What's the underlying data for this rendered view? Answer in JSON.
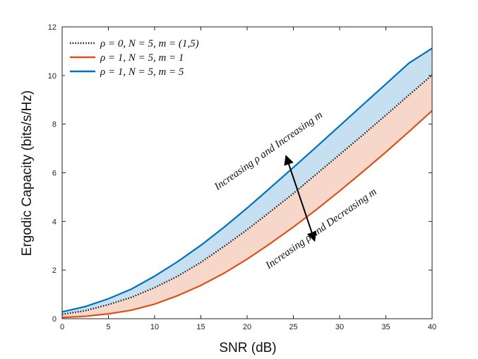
{
  "chart_data": {
    "type": "line",
    "xlabel": "SNR (dB)",
    "ylabel": "Ergodic Capacity (bits/s/Hz)",
    "xlim": [
      0,
      40
    ],
    "ylim": [
      0,
      12
    ],
    "xticks": [
      0,
      5,
      10,
      15,
      20,
      25,
      30,
      35,
      40
    ],
    "yticks": [
      0,
      2,
      4,
      6,
      8,
      10,
      12
    ],
    "grid": false,
    "legend_position": "top-left",
    "x": [
      0,
      2.5,
      5,
      7.5,
      10,
      12.5,
      15,
      17.5,
      20,
      22.5,
      25,
      27.5,
      30,
      32.5,
      35,
      37.5,
      40
    ],
    "series": [
      {
        "name": "ρ = 0, N = 5, m = (1,5)",
        "color": "#111111",
        "style": "dotted",
        "values": [
          0.18,
          0.33,
          0.58,
          0.88,
          1.28,
          1.75,
          2.32,
          2.97,
          3.66,
          4.4,
          5.15,
          5.95,
          6.75,
          7.55,
          8.37,
          9.2,
          10.02
        ]
      },
      {
        "name": "ρ = 1, N = 5, m = 1",
        "color": "#d95319",
        "style": "solid",
        "values": [
          0.05,
          0.1,
          0.2,
          0.35,
          0.6,
          0.95,
          1.37,
          1.87,
          2.45,
          3.09,
          3.77,
          4.49,
          5.25,
          6.04,
          6.85,
          7.69,
          8.55
        ]
      },
      {
        "name": "ρ = 1, N = 5, m = 5",
        "color": "#0072bd",
        "style": "solid",
        "values": [
          0.28,
          0.5,
          0.82,
          1.22,
          1.75,
          2.35,
          3.02,
          3.76,
          4.55,
          5.38,
          6.22,
          7.07,
          7.93,
          8.79,
          9.65,
          10.51,
          11.12
        ]
      }
    ],
    "bands": [
      {
        "between": [
          "ρ = 0, N = 5, m = (1,5)",
          "ρ = 1, N = 5, m = 5"
        ],
        "color": "#c6e0f2"
      },
      {
        "between": [
          "ρ = 1, N = 5, m = 1",
          "ρ = 0, N = 5, m = (1,5)"
        ],
        "color": "#f8d7cb"
      }
    ],
    "annotations": [
      {
        "text": "Increasing ρ and Increasing m",
        "x": 22.5,
        "y": 6.8
      },
      {
        "text": "Increasing ρ and Decreasing m",
        "x": 28.2,
        "y": 3.6
      }
    ],
    "arrow": {
      "from": [
        24.2,
        6.7
      ],
      "to": [
        27.3,
        3.2
      ]
    }
  }
}
